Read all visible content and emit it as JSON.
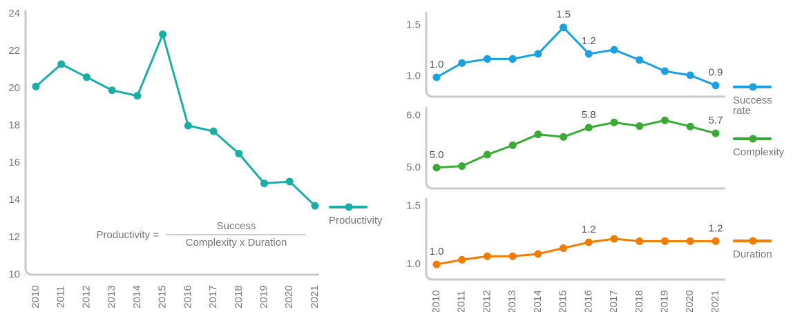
{
  "chart_data": [
    {
      "type": "line",
      "categories": [
        "2010",
        "2011",
        "2012",
        "2013",
        "2014",
        "2015",
        "2016",
        "2017",
        "2018",
        "2019",
        "2020",
        "2021"
      ],
      "series": [
        {
          "name": "Productivity",
          "color": "#1aaea6",
          "values": [
            20.1,
            21.3,
            20.6,
            19.9,
            19.6,
            22.9,
            18.0,
            17.7,
            16.5,
            14.9,
            15.0,
            13.7
          ]
        }
      ],
      "ylim": [
        10,
        24
      ],
      "yticks": [
        10,
        12,
        14,
        16,
        18,
        20,
        22,
        24
      ],
      "annotation": {
        "lhs": "Productivity =",
        "numerator": "Success",
        "denominator": "Complexity x Duration"
      }
    },
    {
      "type": "line",
      "series": [
        {
          "name": "Success rate",
          "color": "#1ba1e2",
          "values": [
            0.99,
            1.13,
            1.17,
            1.17,
            1.22,
            1.48,
            1.22,
            1.26,
            1.16,
            1.05,
            1.01,
            0.91
          ],
          "value_labels": [
            "1.0",
            null,
            null,
            null,
            null,
            "1.5",
            "1.2",
            null,
            null,
            null,
            null,
            "0.9"
          ]
        }
      ],
      "ylim": [
        0.8,
        1.6
      ],
      "yticks": [
        {
          "value": 1,
          "label": "1.0"
        },
        {
          "value": 1.5,
          "label": "1.5"
        }
      ]
    },
    {
      "type": "line",
      "series": [
        {
          "name": "Complexity",
          "color": "#3aaa35",
          "values": [
            5.0,
            5.03,
            5.25,
            5.43,
            5.64,
            5.59,
            5.77,
            5.87,
            5.8,
            5.91,
            5.79,
            5.66
          ],
          "value_labels": [
            "5.0",
            null,
            null,
            null,
            null,
            null,
            "5.8",
            null,
            null,
            null,
            null,
            "5.7"
          ]
        }
      ],
      "ylim": [
        4.6,
        6.1
      ],
      "yticks": [
        {
          "value": 5,
          "label": "5.0"
        },
        {
          "value": 6,
          "label": "6.0"
        }
      ]
    },
    {
      "type": "line",
      "categories": [
        "2010",
        "2011",
        "2012",
        "2013",
        "2014",
        "2015",
        "2016",
        "2017",
        "2018",
        "2019",
        "2020",
        "2021"
      ],
      "series": [
        {
          "name": "Duration",
          "color": "#f07d00",
          "values": [
            1.0,
            1.04,
            1.07,
            1.07,
            1.09,
            1.14,
            1.19,
            1.22,
            1.2,
            1.2,
            1.2,
            1.2
          ],
          "value_labels": [
            "1.0",
            null,
            null,
            null,
            null,
            null,
            "1.2",
            null,
            null,
            null,
            null,
            "1.2"
          ]
        }
      ],
      "ylim": [
        0.87,
        1.54
      ],
      "yticks": [
        {
          "value": 1,
          "label": "1.0"
        },
        {
          "value": 1.5,
          "label": "1.5"
        }
      ]
    }
  ]
}
